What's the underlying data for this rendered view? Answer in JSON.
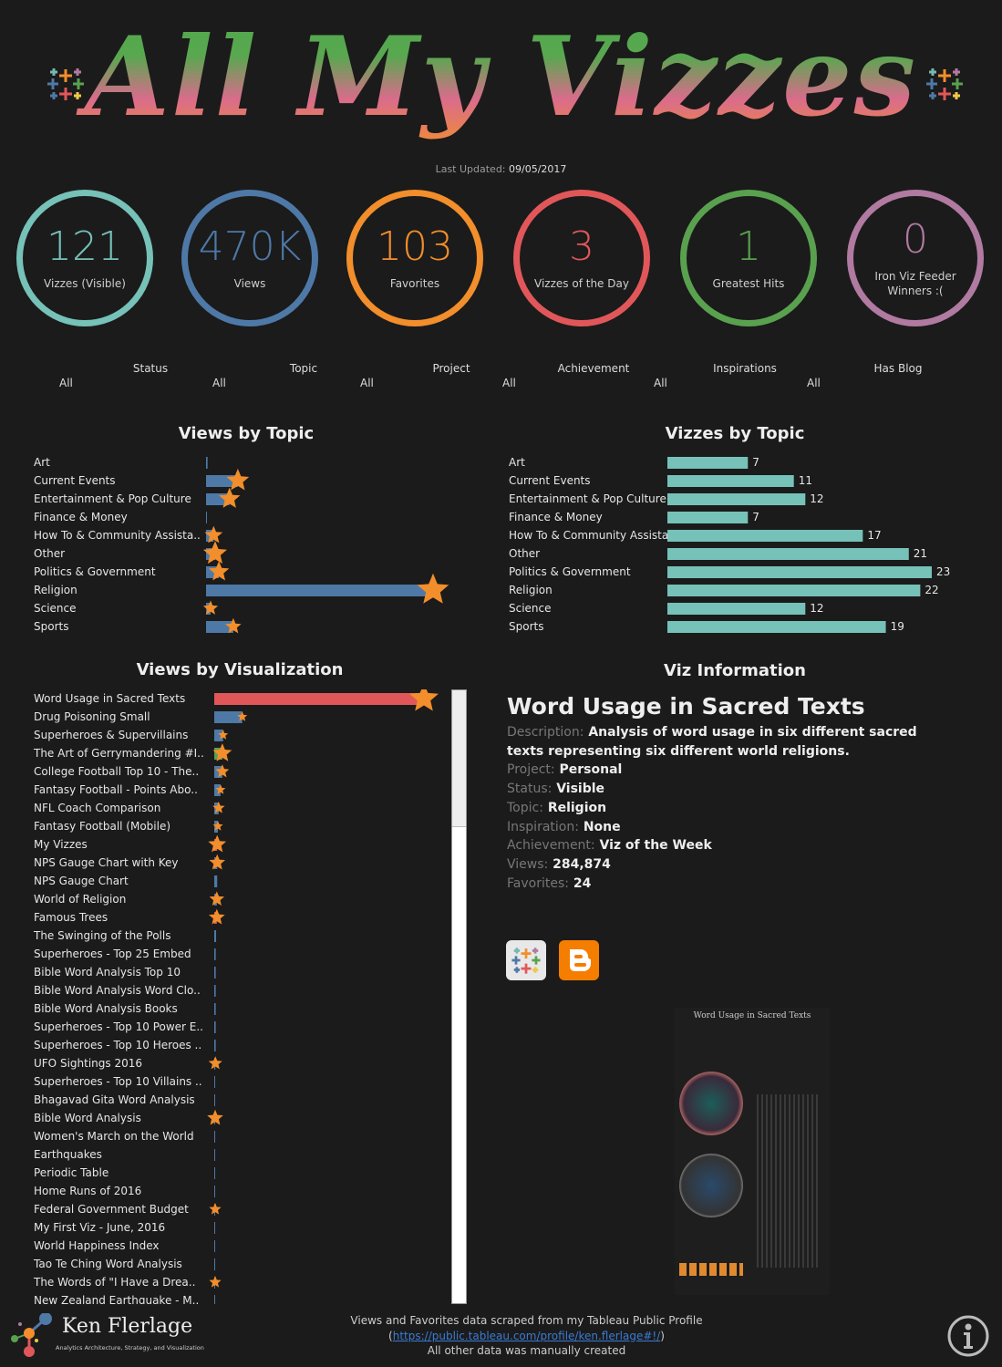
{
  "header": {
    "title": "All My Vizzes",
    "updated_label": "Last Updated:",
    "updated_value": "09/05/2017"
  },
  "kpis": [
    {
      "value": "121",
      "label": "Vizzes (Visible)",
      "color": "#76c1b8"
    },
    {
      "value": "470K",
      "label": "Views",
      "color": "#4e79a7"
    },
    {
      "value": "103",
      "label": "Favorites",
      "color": "#f28e2b"
    },
    {
      "value": "3",
      "label": "Vizzes of the Day",
      "color": "#e15759"
    },
    {
      "value": "1",
      "label": "Greatest Hits",
      "color": "#59a14f"
    },
    {
      "value": "0",
      "label": "Iron Viz Feeder Winners :(",
      "color": "#b07aa1"
    }
  ],
  "filters": [
    {
      "label": "Status",
      "value": "All"
    },
    {
      "label": "Topic",
      "value": "All"
    },
    {
      "label": "Project",
      "value": "All"
    },
    {
      "label": "Achievement",
      "value": "All"
    },
    {
      "label": "Inspirations",
      "value": "All"
    },
    {
      "label": "Has Blog",
      "value": "All"
    }
  ],
  "chart_data": [
    {
      "type": "bar",
      "title": "Views by Topic",
      "orientation": "horizontal",
      "color": "#4e79a7",
      "marker": "star sized by favorites",
      "marker_color": "#f28e2b",
      "categories": [
        "Art",
        "Current Events",
        "Entertainment & Pop Culture",
        "Finance & Money",
        "How To & Community Assista..",
        "Other",
        "Politics & Government",
        "Religion",
        "Science",
        "Sports"
      ],
      "values": [
        2000,
        42000,
        31000,
        1000,
        10000,
        12000,
        17000,
        300000,
        6000,
        36000
      ],
      "favorites": [
        0,
        12,
        10,
        0,
        6,
        14,
        9,
        30,
        3,
        4
      ]
    },
    {
      "type": "bar",
      "title": "Vizzes by Topic",
      "orientation": "horizontal",
      "color": "#76c1b8",
      "data_labels": true,
      "categories": [
        "Art",
        "Current Events",
        "Entertainment & Pop Culture",
        "Finance & Money",
        "How To & Community Assista..",
        "Other",
        "Politics & Government",
        "Religion",
        "Science",
        "Sports"
      ],
      "values": [
        7,
        11,
        12,
        7,
        17,
        21,
        23,
        22,
        12,
        19
      ]
    },
    {
      "type": "bar",
      "title": "Views by Visualization",
      "orientation": "horizontal",
      "marker": "star sized by favorites",
      "marker_color": "#f28e2b",
      "categories": [
        "Word Usage in Sacred Texts",
        "Drug Poisoning Small",
        "Superheroes & Supervillains",
        "The Art of Gerrymandering #I..",
        "College Football Top 10 - The..",
        "Fantasy Football - Points Abo..",
        "NFL Coach Comparison",
        "Fantasy Football (Mobile)",
        "My Vizzes",
        "NPS Gauge Chart with Key",
        "NPS Gauge Chart",
        "World of Religion",
        "Famous Trees",
        "The Swinging of the Polls",
        "Superheroes - Top 25 Embed",
        "Bible Word Analysis Top 10",
        "Bible Word Analysis Word Clo..",
        "Bible Word Analysis Books",
        "Superheroes - Top 10 Power E..",
        "Superheroes - Top 10 Heroes ..",
        "UFO Sightings 2016",
        "Superheroes - Top 10 Villains ..",
        "Bhagavad Gita Word Analysis",
        "Bible Word Analysis",
        "Women's March on the World",
        "Earthquakes",
        "Periodic Table",
        "Home Runs of 2016",
        "Federal Government Budget",
        "My First Viz - June, 2016",
        "World Happiness Index",
        "Tao Te Ching Word Analysis",
        "The Words of \"I Have a Drea..",
        "New Zealand Earthquake - M.."
      ],
      "values": [
        284874,
        38000,
        12000,
        11000,
        11000,
        8500,
        6000,
        5000,
        4000,
        4000,
        4000,
        3500,
        3500,
        2500,
        2000,
        2000,
        2000,
        2000,
        2000,
        2000,
        1500,
        1200,
        1200,
        1200,
        1000,
        1000,
        900,
        900,
        900,
        800,
        800,
        800,
        800,
        700
      ],
      "favorites": [
        24,
        1,
        1,
        8,
        3,
        1,
        2,
        1,
        7,
        5,
        0,
        4,
        5,
        0,
        0,
        0,
        0,
        0,
        0,
        0,
        3,
        0,
        0,
        5,
        0,
        0,
        0,
        0,
        2,
        0,
        0,
        0,
        2,
        0
      ],
      "colors": [
        "#e15759",
        "#4e79a7",
        "#4e79a7",
        "#59a14f",
        "#4e79a7",
        "#4e79a7",
        "#4e79a7",
        "#4e79a7",
        "#e15759",
        "#4e79a7",
        "#4e79a7",
        "#4e79a7",
        "#e15759",
        "#4e79a7",
        "#4e79a7",
        "#4e79a7",
        "#4e79a7",
        "#4e79a7",
        "#4e79a7",
        "#4e79a7",
        "#4e79a7",
        "#4e79a7",
        "#4e79a7",
        "#4e79a7",
        "#4e79a7",
        "#4e79a7",
        "#4e79a7",
        "#4e79a7",
        "#4e79a7",
        "#4e79a7",
        "#4e79a7",
        "#4e79a7",
        "#4e79a7",
        "#4e79a7"
      ]
    }
  ],
  "viz_info": {
    "heading": "Viz Information",
    "title": "Word Usage in Sacred Texts",
    "rows": [
      {
        "k": "Description:",
        "v": "Analysis of word usage in six different sacred texts representing six different world religions."
      },
      {
        "k": "Project:",
        "v": "Personal"
      },
      {
        "k": "Status:",
        "v": "Visible"
      },
      {
        "k": "Topic:",
        "v": "Religion"
      },
      {
        "k": "Inspiration:",
        "v": "None"
      },
      {
        "k": "Achievement:",
        "v": "Viz of the Week"
      },
      {
        "k": "Views:",
        "v": "284,874"
      },
      {
        "k": "Favorites:",
        "v": "24"
      }
    ],
    "thumb_title": "Word Usage in Sacred Texts"
  },
  "footer": {
    "line1": "Views and Favorites data scraped from my Tableau Public Profile",
    "link": "https://public.tableau.com/profile/ken.flerlage#!/",
    "line3": "All other data was manually created",
    "brand": "Ken Flerlage",
    "tagline": "Analytics Architecture, Strategy, and Visualization"
  },
  "icons": [
    "tableau-icon",
    "blogger-icon",
    "info-icon",
    "star-icon"
  ]
}
